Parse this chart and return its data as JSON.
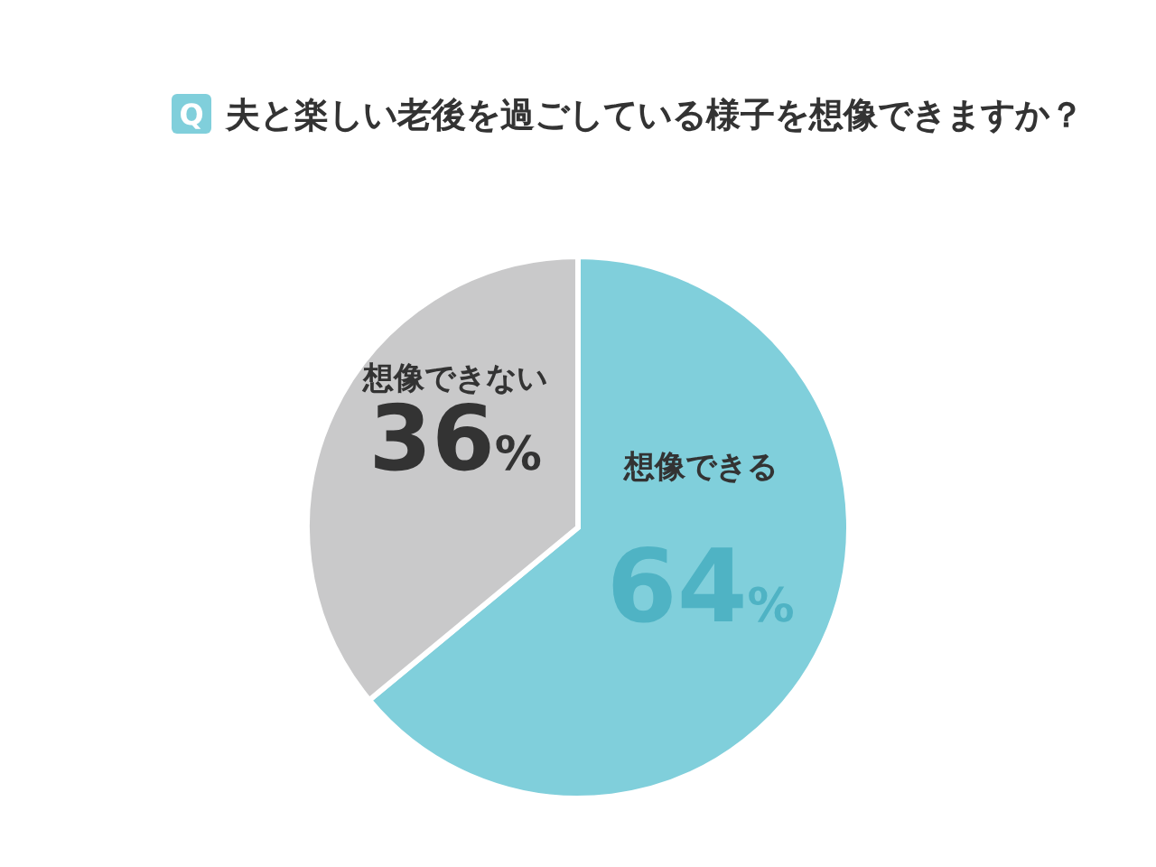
{
  "chart_data": {
    "type": "pie",
    "title": "夫と楽しい老後を過ごしている様子を想像できますか？",
    "annotations": [
      "Q"
    ],
    "categories": [
      "想像できる",
      "想像できない"
    ],
    "values": [
      64,
      36
    ],
    "value_labels": [
      "64%",
      "36%"
    ],
    "colors": [
      "#80cfdb",
      "#c9c9ca"
    ]
  }
}
